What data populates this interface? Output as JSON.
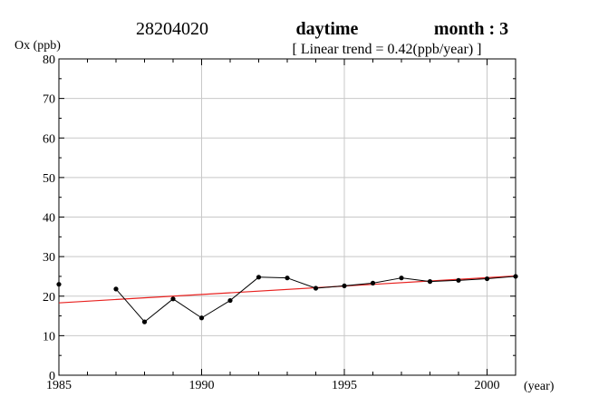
{
  "header": {
    "station": "28204020",
    "period": "daytime",
    "month": "month : 3",
    "trend": "[ Linear trend = 0.42(ppb/year) ]"
  },
  "chart_data": {
    "type": "line",
    "title": "",
    "ylabel": "Ox (ppb)",
    "xlabel": "(year)",
    "xlim": [
      1985,
      2001
    ],
    "ylim": [
      0,
      80
    ],
    "x_ticks": [
      1985,
      1990,
      1995,
      2000
    ],
    "y_ticks": [
      0,
      10,
      20,
      30,
      40,
      50,
      60,
      70,
      80
    ],
    "grid": true,
    "series": [
      {
        "values_by_year": [
          {
            "x": 1985,
            "y": 23.0
          },
          {
            "x": 1987,
            "y": 21.8
          },
          {
            "x": 1988,
            "y": 13.5
          },
          {
            "x": 1989,
            "y": 19.3
          },
          {
            "x": 1990,
            "y": 14.5
          },
          {
            "x": 1991,
            "y": 18.9
          },
          {
            "x": 1992,
            "y": 24.8
          },
          {
            "x": 1993,
            "y": 24.6
          },
          {
            "x": 1994,
            "y": 22.0
          },
          {
            "x": 1995,
            "y": 22.6
          },
          {
            "x": 1996,
            "y": 23.3
          },
          {
            "x": 1997,
            "y": 24.6
          },
          {
            "x": 1998,
            "y": 23.7
          },
          {
            "x": 1999,
            "y": 24.0
          },
          {
            "x": 2000,
            "y": 24.4
          },
          {
            "x": 2001,
            "y": 25.0
          }
        ],
        "color": "#000000"
      }
    ],
    "trend_line": {
      "from": {
        "x": 1985,
        "y": 18.3
      },
      "to": {
        "x": 2001,
        "y": 25.1
      },
      "color": "#e8211f"
    }
  }
}
